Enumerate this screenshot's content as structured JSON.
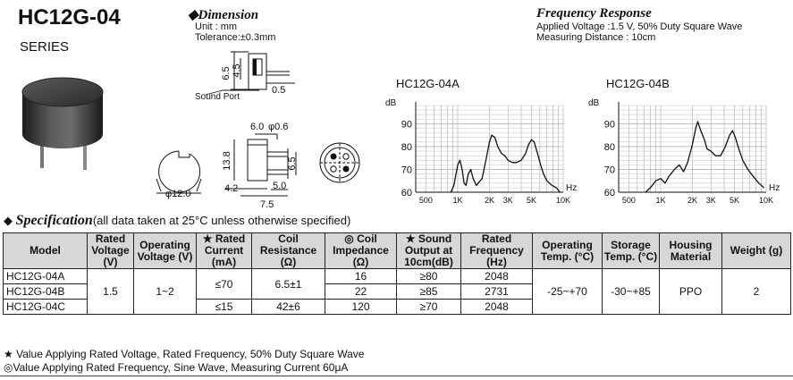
{
  "header": {
    "model_title": "HC12G-04",
    "series_label": "SERIES"
  },
  "dimension": {
    "heading": "Dimension",
    "unit": "Unit : mm",
    "tolerance": "Tolerance:±0.3mm",
    "labels": {
      "d65": "6.5",
      "d45": "4.5",
      "d05": "0.5",
      "sound_port": "Sound Port",
      "d60": "6.0",
      "d06": "φ0.6",
      "d138": "13.8",
      "d65b": "6.5",
      "d42": "4.2",
      "d50": "5.0",
      "d75": "7.5",
      "phi120": "φ12.0"
    }
  },
  "frequency_response": {
    "heading": "Frequency Response",
    "applied_voltage": "Applied Voltage :1.5 V, 50% Duty Square Wave",
    "measuring_distance": "Measuring Distance : 10cm"
  },
  "chart_data": [
    {
      "type": "line",
      "title": "HC12G-04A",
      "ylabel": "dB",
      "xlabel": "Hz",
      "x_scale": "log",
      "x_ticks": [
        "500",
        "1K",
        "2K",
        "3K",
        "5K",
        "10K"
      ],
      "y_ticks": [
        "60",
        "70",
        "80",
        "90"
      ],
      "ylim": [
        60,
        98
      ],
      "grid": true,
      "series": [
        {
          "x": [
            860,
            920,
            1000,
            1050,
            1100,
            1150,
            1200,
            1260,
            1330,
            1400,
            1500,
            1700,
            1850,
            2000,
            2100,
            2250,
            2400,
            2600,
            2800,
            3000,
            3300,
            3600,
            4000,
            4400,
            4700,
            5000,
            5300,
            5700,
            6100,
            6500,
            7000,
            7800,
            8600,
            9300
          ],
          "y": [
            60,
            63,
            72,
            74,
            70,
            64,
            63,
            68,
            70,
            66,
            63,
            66,
            74,
            82,
            85,
            84,
            80,
            77,
            76,
            74,
            73,
            73,
            74,
            77,
            81,
            83,
            82,
            77,
            72,
            68,
            65,
            63,
            62,
            60
          ]
        }
      ]
    },
    {
      "type": "line",
      "title": "HC12G-04B",
      "ylabel": "dB",
      "xlabel": "Hz",
      "x_scale": "log",
      "x_ticks": [
        "500",
        "1K",
        "2K",
        "3K",
        "5K",
        "10K"
      ],
      "y_ticks": [
        "60",
        "70",
        "80",
        "90"
      ],
      "ylim": [
        60,
        98
      ],
      "grid": true,
      "series": [
        {
          "x": [
            720,
            800,
            900,
            1000,
            1100,
            1200,
            1350,
            1500,
            1650,
            1800,
            2000,
            2150,
            2250,
            2400,
            2600,
            2750,
            3000,
            3300,
            3700,
            4100,
            4500,
            4800,
            5100,
            5500,
            6000,
            6700,
            7500,
            8500,
            9500
          ],
          "y": [
            60,
            62,
            65,
            66,
            64,
            67,
            70,
            72,
            69,
            73,
            81,
            88,
            91,
            87,
            83,
            79,
            78,
            76,
            76,
            80,
            85,
            87,
            84,
            79,
            74,
            70,
            67,
            64,
            62
          ]
        }
      ]
    }
  ],
  "specification": {
    "heading": "Specification",
    "condition": "(all data taken at 25°C unless otherwise specified)",
    "columns": [
      "Model",
      "Rated Voltage (V)",
      "Operating Voltage (V)",
      "★ Rated Current (mA)",
      "Coil Resistance (Ω)",
      "◎ Coil Impedance (Ω)",
      "★ Sound Output at 10cm(dB)",
      "Rated Frequency (Hz)",
      "Operating Temp. (°C)",
      "Storage Temp. (°C)",
      "Housing Material",
      "Weight (g)"
    ],
    "shared": {
      "rated_voltage": "1.5",
      "operating_voltage": "1~2",
      "current_ab": "≤70",
      "resistance_ab": "6.5±1",
      "operating_temp": "-25~+70",
      "storage_temp": "-30~+85",
      "housing": "PPO",
      "weight": "2"
    },
    "rows": [
      {
        "model": "HC12G-04A",
        "impedance": "16",
        "sound": "≥80",
        "frequency": "2048"
      },
      {
        "model": "HC12G-04B",
        "impedance": "22",
        "sound": "≥85",
        "frequency": "2731"
      },
      {
        "model": "HC12G-04C",
        "current": "≤15",
        "resistance": "42±6",
        "impedance": "120",
        "sound": "≥70",
        "frequency": "2048"
      }
    ]
  },
  "notes": {
    "star": "★ Value Applying Rated Voltage, Rated Frequency, 50% Duty Square Wave",
    "circle": "◎Value Applying Rated Frequency, Sine Wave, Measuring Current 60μA"
  }
}
